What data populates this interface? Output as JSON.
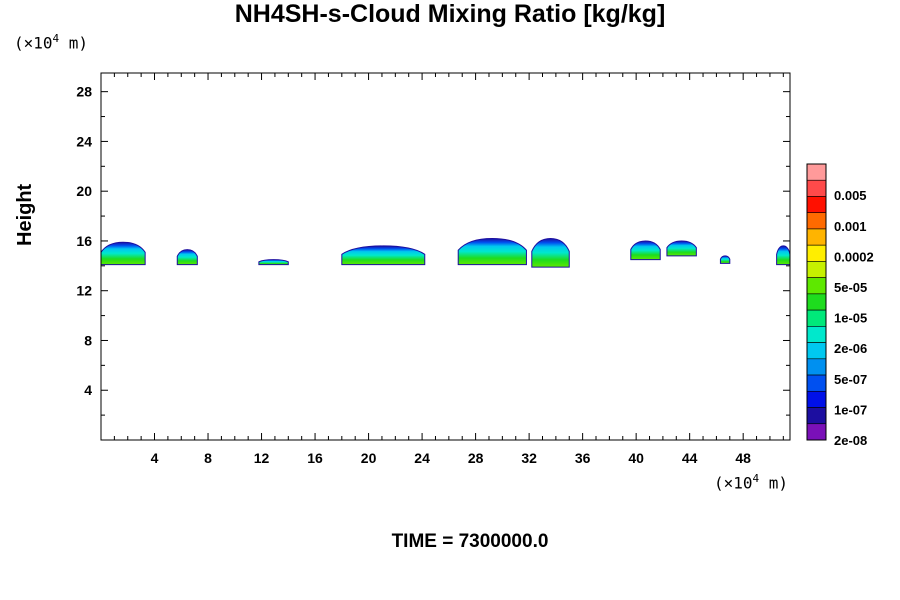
{
  "chart_data": {
    "type": "heatmap",
    "title": "NH4SH-s-Cloud Mixing Ratio [kg/kg]",
    "ylabel": "Height",
    "x_unit_label": "(×10⁴ m)",
    "y_unit_label": "(×10⁴ m)",
    "footer": "TIME = 7300000.0",
    "xlim": [
      0,
      51.5
    ],
    "ylim": [
      0,
      29.5
    ],
    "x_ticks": [
      4,
      8,
      12,
      16,
      20,
      24,
      28,
      32,
      36,
      40,
      44,
      48
    ],
    "y_ticks": [
      4,
      8,
      12,
      16,
      20,
      24,
      28
    ],
    "colorbar": {
      "labels": [
        "0.005",
        "0.001",
        "0.0002",
        "5e-05",
        "1e-05",
        "2e-06",
        "5e-07",
        "1e-07",
        "2e-08"
      ],
      "colors": [
        "#ff9a9a",
        "#ff4a4a",
        "#ff1000",
        "#ff6a00",
        "#ffb400",
        "#ffee00",
        "#c6f000",
        "#5ee800",
        "#1edc1e",
        "#00e87a",
        "#00e8cc",
        "#00c8f0",
        "#0090f0",
        "#0050f0",
        "#0010e8",
        "#1c0ea0",
        "#7a10b8"
      ]
    },
    "cloud_patches": [
      {
        "x0": 0.0,
        "x1": 3.3,
        "bottom": 14.1,
        "top": 15.9
      },
      {
        "x0": 5.7,
        "x1": 7.2,
        "bottom": 14.1,
        "top": 15.3
      },
      {
        "x0": 11.8,
        "x1": 14.0,
        "bottom": 14.1,
        "top": 14.5
      },
      {
        "x0": 18.0,
        "x1": 24.2,
        "bottom": 14.1,
        "top": 15.6
      },
      {
        "x0": 26.7,
        "x1": 31.8,
        "bottom": 14.1,
        "top": 16.2
      },
      {
        "x0": 32.2,
        "x1": 35.0,
        "bottom": 13.9,
        "top": 16.2
      },
      {
        "x0": 39.6,
        "x1": 41.8,
        "bottom": 14.5,
        "top": 16.0
      },
      {
        "x0": 42.3,
        "x1": 44.5,
        "bottom": 14.8,
        "top": 16.0
      },
      {
        "x0": 46.3,
        "x1": 47.0,
        "bottom": 14.2,
        "top": 14.8
      },
      {
        "x0": 50.5,
        "x1": 51.5,
        "bottom": 14.1,
        "top": 15.6
      }
    ]
  }
}
